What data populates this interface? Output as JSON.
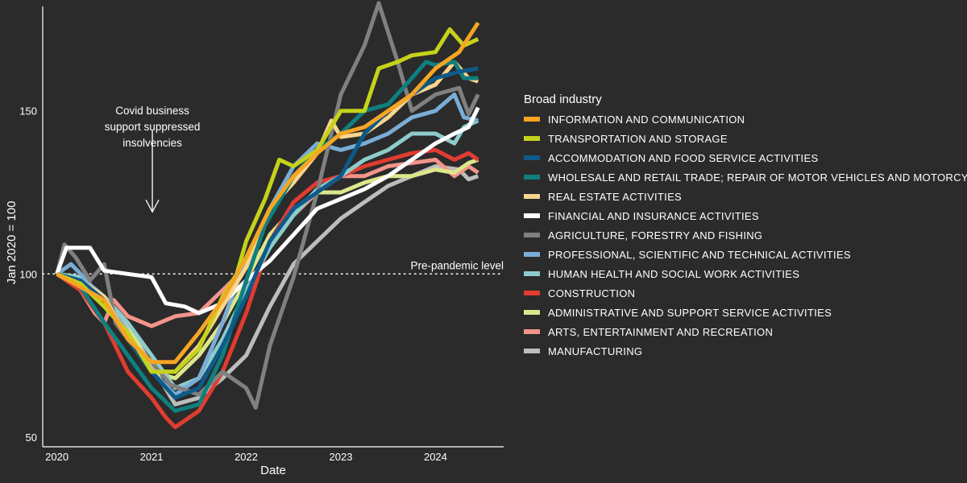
{
  "chart_data": {
    "type": "line",
    "title": "",
    "xlabel": "Date",
    "ylabel": "Jan 2020 = 100",
    "xlim": [
      2019.85,
      2024.72
    ],
    "ylim": [
      47,
      182
    ],
    "x_ticks": [
      2020,
      2021,
      2022,
      2023,
      2024
    ],
    "x_tick_labels": [
      "2020",
      "2021",
      "2022",
      "2023",
      "2024"
    ],
    "y_ticks": [
      50,
      100,
      150
    ],
    "y_tick_labels": [
      "50",
      "100",
      "150"
    ],
    "reference_line": {
      "value": 100,
      "label": "Pre-pandemic level",
      "style": "dotted"
    },
    "annotations": [
      {
        "lines": [
          "Covid business",
          "support suppressed",
          "insolvencies"
        ],
        "arrow_x": 2021.0,
        "arrow_from": 144,
        "arrow_to": 119
      }
    ],
    "legend": {
      "title": "Broad industry",
      "position": "right"
    },
    "series": [
      {
        "name": "INFORMATION AND COMMUNICATION",
        "color": "#f5a623",
        "points": [
          [
            2020.0,
            100
          ],
          [
            2020.5,
            92
          ],
          [
            2020.75,
            80
          ],
          [
            2021.0,
            73
          ],
          [
            2021.25,
            73
          ],
          [
            2021.5,
            82
          ],
          [
            2021.75,
            92
          ],
          [
            2022.0,
            105
          ],
          [
            2022.25,
            120
          ],
          [
            2022.5,
            130
          ],
          [
            2022.75,
            137
          ],
          [
            2023.0,
            143
          ],
          [
            2023.25,
            145
          ],
          [
            2023.5,
            150
          ],
          [
            2023.75,
            155
          ],
          [
            2024.0,
            163
          ],
          [
            2024.25,
            168
          ],
          [
            2024.45,
            177
          ]
        ]
      },
      {
        "name": "TRANSPORTATION AND STORAGE",
        "color": "#c5d21a",
        "points": [
          [
            2020.0,
            100
          ],
          [
            2020.25,
            97
          ],
          [
            2020.5,
            90
          ],
          [
            2020.75,
            82
          ],
          [
            2021.0,
            70
          ],
          [
            2021.25,
            70
          ],
          [
            2021.5,
            77
          ],
          [
            2021.75,
            93
          ],
          [
            2021.9,
            100
          ],
          [
            2022.0,
            110
          ],
          [
            2022.2,
            123
          ],
          [
            2022.35,
            135
          ],
          [
            2022.5,
            133
          ],
          [
            2022.75,
            138
          ],
          [
            2023.0,
            150
          ],
          [
            2023.25,
            150
          ],
          [
            2023.4,
            163
          ],
          [
            2023.6,
            165
          ],
          [
            2023.75,
            167
          ],
          [
            2024.0,
            168
          ],
          [
            2024.15,
            175
          ],
          [
            2024.3,
            170
          ],
          [
            2024.45,
            172
          ]
        ]
      },
      {
        "name": "ACCOMMODATION AND FOOD SERVICE ACTIVITIES",
        "color": "#0e5a8a",
        "points": [
          [
            2020.0,
            100
          ],
          [
            2020.25,
            98
          ],
          [
            2020.5,
            92
          ],
          [
            2020.75,
            80
          ],
          [
            2021.0,
            70
          ],
          [
            2021.25,
            62
          ],
          [
            2021.5,
            65
          ],
          [
            2021.75,
            78
          ],
          [
            2022.0,
            93
          ],
          [
            2022.25,
            110
          ],
          [
            2022.5,
            120
          ],
          [
            2022.75,
            125
          ],
          [
            2023.0,
            130
          ],
          [
            2023.25,
            143
          ],
          [
            2023.5,
            150
          ],
          [
            2023.75,
            155
          ],
          [
            2024.0,
            160
          ],
          [
            2024.25,
            162
          ],
          [
            2024.45,
            163
          ]
        ]
      },
      {
        "name": "WHOLESALE AND RETAIL TRADE; REPAIR OF MOTOR VEHICLES AND MOTORCYCLES",
        "color": "#0f7f7f",
        "points": [
          [
            2020.0,
            100
          ],
          [
            2020.25,
            96
          ],
          [
            2020.5,
            85
          ],
          [
            2020.75,
            75
          ],
          [
            2021.0,
            65
          ],
          [
            2021.25,
            58
          ],
          [
            2021.5,
            60
          ],
          [
            2021.75,
            75
          ],
          [
            2022.0,
            98
          ],
          [
            2022.2,
            115
          ],
          [
            2022.5,
            130
          ],
          [
            2022.75,
            138
          ],
          [
            2023.0,
            143
          ],
          [
            2023.25,
            150
          ],
          [
            2023.5,
            152
          ],
          [
            2023.75,
            160
          ],
          [
            2023.9,
            165
          ],
          [
            2024.0,
            164
          ],
          [
            2024.2,
            165
          ],
          [
            2024.3,
            160
          ],
          [
            2024.45,
            160
          ]
        ]
      },
      {
        "name": "REAL ESTATE ACTIVITIES",
        "color": "#f9d58e",
        "points": [
          [
            2020.0,
            100
          ],
          [
            2020.25,
            98
          ],
          [
            2020.5,
            93
          ],
          [
            2020.75,
            80
          ],
          [
            2021.0,
            70
          ],
          [
            2021.25,
            70
          ],
          [
            2021.5,
            78
          ],
          [
            2021.75,
            90
          ],
          [
            2022.0,
            102
          ],
          [
            2022.25,
            120
          ],
          [
            2022.5,
            128
          ],
          [
            2022.75,
            137
          ],
          [
            2022.9,
            147
          ],
          [
            2023.0,
            142
          ],
          [
            2023.25,
            143
          ],
          [
            2023.5,
            148
          ],
          [
            2023.75,
            155
          ],
          [
            2024.0,
            158
          ],
          [
            2024.2,
            165
          ],
          [
            2024.35,
            160
          ],
          [
            2024.45,
            159
          ]
        ]
      },
      {
        "name": "FINANCIAL AND INSURANCE ACTIVITIES",
        "color": "#ffffff",
        "points": [
          [
            2020.0,
            100
          ],
          [
            2020.1,
            108
          ],
          [
            2020.35,
            108
          ],
          [
            2020.5,
            101
          ],
          [
            2020.75,
            100
          ],
          [
            2021.0,
            99
          ],
          [
            2021.15,
            91
          ],
          [
            2021.35,
            90
          ],
          [
            2021.5,
            88
          ],
          [
            2021.75,
            91
          ],
          [
            2022.0,
            98
          ],
          [
            2022.25,
            104
          ],
          [
            2022.5,
            112
          ],
          [
            2022.75,
            120
          ],
          [
            2023.0,
            123
          ],
          [
            2023.25,
            126
          ],
          [
            2023.5,
            130
          ],
          [
            2023.75,
            135
          ],
          [
            2024.0,
            140
          ],
          [
            2024.2,
            143
          ],
          [
            2024.35,
            145
          ],
          [
            2024.45,
            151
          ]
        ]
      },
      {
        "name": "AGRICULTURE, FORESTRY AND FISHING",
        "color": "#808080",
        "points": [
          [
            2020.0,
            100
          ],
          [
            2020.08,
            109
          ],
          [
            2020.2,
            105
          ],
          [
            2020.35,
            98
          ],
          [
            2020.5,
            103
          ],
          [
            2020.62,
            85
          ],
          [
            2020.75,
            80
          ],
          [
            2021.0,
            73
          ],
          [
            2021.2,
            66
          ],
          [
            2021.5,
            63
          ],
          [
            2021.75,
            70
          ],
          [
            2022.0,
            65
          ],
          [
            2022.1,
            59
          ],
          [
            2022.25,
            78
          ],
          [
            2022.5,
            99
          ],
          [
            2022.75,
            125
          ],
          [
            2023.0,
            155
          ],
          [
            2023.25,
            170
          ],
          [
            2023.4,
            183
          ],
          [
            2023.6,
            165
          ],
          [
            2023.75,
            150
          ],
          [
            2024.0,
            155
          ],
          [
            2024.25,
            157
          ],
          [
            2024.35,
            149
          ],
          [
            2024.45,
            155
          ]
        ]
      },
      {
        "name": "PROFESSIONAL, SCIENTIFIC AND TECHNICAL ACTIVITIES",
        "color": "#7aadd6",
        "points": [
          [
            2020.0,
            100
          ],
          [
            2020.15,
            103
          ],
          [
            2020.25,
            100
          ],
          [
            2020.5,
            92
          ],
          [
            2020.75,
            82
          ],
          [
            2021.0,
            70
          ],
          [
            2021.25,
            63
          ],
          [
            2021.5,
            68
          ],
          [
            2021.75,
            85
          ],
          [
            2022.0,
            105
          ],
          [
            2022.25,
            120
          ],
          [
            2022.5,
            133
          ],
          [
            2022.75,
            140
          ],
          [
            2023.0,
            138
          ],
          [
            2023.25,
            140
          ],
          [
            2023.5,
            143
          ],
          [
            2023.75,
            148
          ],
          [
            2024.0,
            150
          ],
          [
            2024.2,
            155
          ],
          [
            2024.3,
            148
          ],
          [
            2024.45,
            147
          ]
        ]
      },
      {
        "name": "HUMAN HEALTH AND SOCIAL WORK ACTIVITIES",
        "color": "#8ecccc",
        "points": [
          [
            2020.0,
            100
          ],
          [
            2020.25,
            99
          ],
          [
            2020.5,
            93
          ],
          [
            2020.75,
            85
          ],
          [
            2021.0,
            75
          ],
          [
            2021.25,
            65
          ],
          [
            2021.5,
            68
          ],
          [
            2021.75,
            80
          ],
          [
            2022.0,
            95
          ],
          [
            2022.25,
            108
          ],
          [
            2022.5,
            118
          ],
          [
            2022.75,
            126
          ],
          [
            2023.0,
            130
          ],
          [
            2023.25,
            135
          ],
          [
            2023.5,
            138
          ],
          [
            2023.75,
            143
          ],
          [
            2024.0,
            143
          ],
          [
            2024.2,
            140
          ],
          [
            2024.3,
            145
          ],
          [
            2024.45,
            147
          ]
        ]
      },
      {
        "name": "CONSTRUCTION",
        "color": "#e03c31",
        "points": [
          [
            2020.0,
            100
          ],
          [
            2020.25,
            95
          ],
          [
            2020.5,
            85
          ],
          [
            2020.75,
            70
          ],
          [
            2021.0,
            62
          ],
          [
            2021.15,
            56
          ],
          [
            2021.25,
            53
          ],
          [
            2021.5,
            58
          ],
          [
            2021.75,
            70
          ],
          [
            2022.0,
            88
          ],
          [
            2022.25,
            110
          ],
          [
            2022.5,
            122
          ],
          [
            2022.75,
            128
          ],
          [
            2023.0,
            130
          ],
          [
            2023.25,
            133
          ],
          [
            2023.5,
            135
          ],
          [
            2023.75,
            137
          ],
          [
            2024.0,
            138
          ],
          [
            2024.2,
            135
          ],
          [
            2024.35,
            137
          ],
          [
            2024.45,
            135
          ]
        ]
      },
      {
        "name": "ADMINISTRATIVE AND SUPPORT SERVICE ACTIVITIES",
        "color": "#dde68a",
        "points": [
          [
            2020.0,
            100
          ],
          [
            2020.25,
            99
          ],
          [
            2020.5,
            93
          ],
          [
            2020.75,
            85
          ],
          [
            2021.0,
            70
          ],
          [
            2021.25,
            68
          ],
          [
            2021.5,
            75
          ],
          [
            2021.75,
            85
          ],
          [
            2022.0,
            98
          ],
          [
            2022.25,
            112
          ],
          [
            2022.5,
            120
          ],
          [
            2022.75,
            125
          ],
          [
            2023.0,
            125
          ],
          [
            2023.25,
            128
          ],
          [
            2023.5,
            130
          ],
          [
            2023.75,
            130
          ],
          [
            2024.0,
            132
          ],
          [
            2024.2,
            131
          ],
          [
            2024.35,
            134
          ],
          [
            2024.45,
            135
          ]
        ]
      },
      {
        "name": "ARTS, ENTERTAINMENT AND RECREATION",
        "color": "#f2948a",
        "points": [
          [
            2020.0,
            100
          ],
          [
            2020.25,
            95
          ],
          [
            2020.4,
            88
          ],
          [
            2020.5,
            85
          ],
          [
            2020.6,
            92
          ],
          [
            2020.75,
            87
          ],
          [
            2021.0,
            84
          ],
          [
            2021.25,
            87
          ],
          [
            2021.5,
            88
          ],
          [
            2021.75,
            95
          ],
          [
            2022.0,
            102
          ],
          [
            2022.25,
            110
          ],
          [
            2022.5,
            118
          ],
          [
            2022.75,
            125
          ],
          [
            2023.0,
            130
          ],
          [
            2023.25,
            130
          ],
          [
            2023.5,
            133
          ],
          [
            2023.75,
            134
          ],
          [
            2024.0,
            135
          ],
          [
            2024.2,
            130
          ],
          [
            2024.35,
            133
          ],
          [
            2024.45,
            131
          ]
        ]
      },
      {
        "name": "MANUFACTURING",
        "color": "#bdbdbd",
        "points": [
          [
            2020.0,
            100
          ],
          [
            2020.25,
            98
          ],
          [
            2020.5,
            92
          ],
          [
            2020.75,
            84
          ],
          [
            2021.0,
            72
          ],
          [
            2021.25,
            60
          ],
          [
            2021.5,
            62
          ],
          [
            2021.75,
            68
          ],
          [
            2022.0,
            75
          ],
          [
            2022.25,
            90
          ],
          [
            2022.5,
            103
          ],
          [
            2022.75,
            110
          ],
          [
            2023.0,
            117
          ],
          [
            2023.25,
            122
          ],
          [
            2023.5,
            127
          ],
          [
            2023.75,
            130
          ],
          [
            2024.0,
            133
          ],
          [
            2024.25,
            132
          ],
          [
            2024.35,
            129
          ],
          [
            2024.45,
            130
          ]
        ]
      }
    ]
  }
}
